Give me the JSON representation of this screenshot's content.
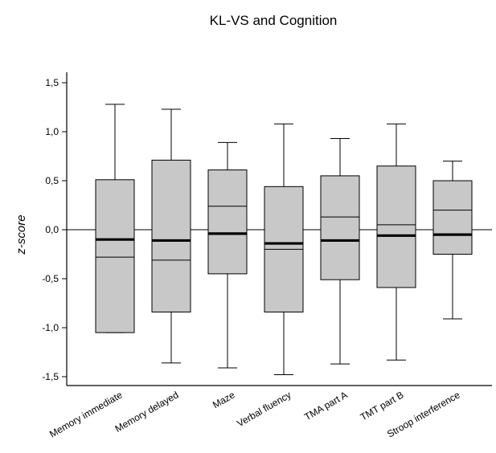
{
  "chart_data": {
    "type": "box",
    "title": "KL-VS and Cognition",
    "xlabel": "",
    "ylabel": "z-score",
    "ylim": [
      -1.6,
      1.6
    ],
    "yticks": [
      -1.5,
      -1.0,
      -0.5,
      0.0,
      0.5,
      1.0,
      1.5
    ],
    "ytick_labels": [
      "-1,5",
      "-1,0",
      "-0,5",
      "0,0",
      "0,5",
      "1,0",
      "1,5"
    ],
    "reference_line": 0.0,
    "categories": [
      "Memory immediate",
      "Memory delayed",
      "Maze",
      "Verbal fluency",
      "TMA part A",
      "TMT part B",
      "Stroop interference"
    ],
    "boxes": [
      {
        "whisker_low": -1.05,
        "q1": -1.05,
        "median": -0.28,
        "mean": -0.1,
        "q3": 0.51,
        "whisker_high": 1.28
      },
      {
        "whisker_low": -1.36,
        "q1": -0.84,
        "median": -0.31,
        "mean": -0.11,
        "q3": 0.71,
        "whisker_high": 1.23
      },
      {
        "whisker_low": -1.41,
        "q1": -0.45,
        "median": 0.24,
        "mean": -0.04,
        "q3": 0.61,
        "whisker_high": 0.89
      },
      {
        "whisker_low": -1.48,
        "q1": -0.84,
        "median": -0.2,
        "mean": -0.14,
        "q3": 0.44,
        "whisker_high": 1.08
      },
      {
        "whisker_low": -1.37,
        "q1": -0.51,
        "median": 0.13,
        "mean": -0.11,
        "q3": 0.55,
        "whisker_high": 0.93
      },
      {
        "whisker_low": -1.33,
        "q1": -0.59,
        "median": 0.05,
        "mean": -0.06,
        "q3": 0.65,
        "whisker_high": 1.08
      },
      {
        "whisker_low": -0.91,
        "q1": -0.25,
        "median": 0.2,
        "mean": -0.05,
        "q3": 0.5,
        "whisker_high": 0.7
      }
    ],
    "colors": {
      "box_fill": "#c8c8c8",
      "stroke": "#000000",
      "background": "#ffffff"
    },
    "grid": false,
    "legend": "none"
  }
}
